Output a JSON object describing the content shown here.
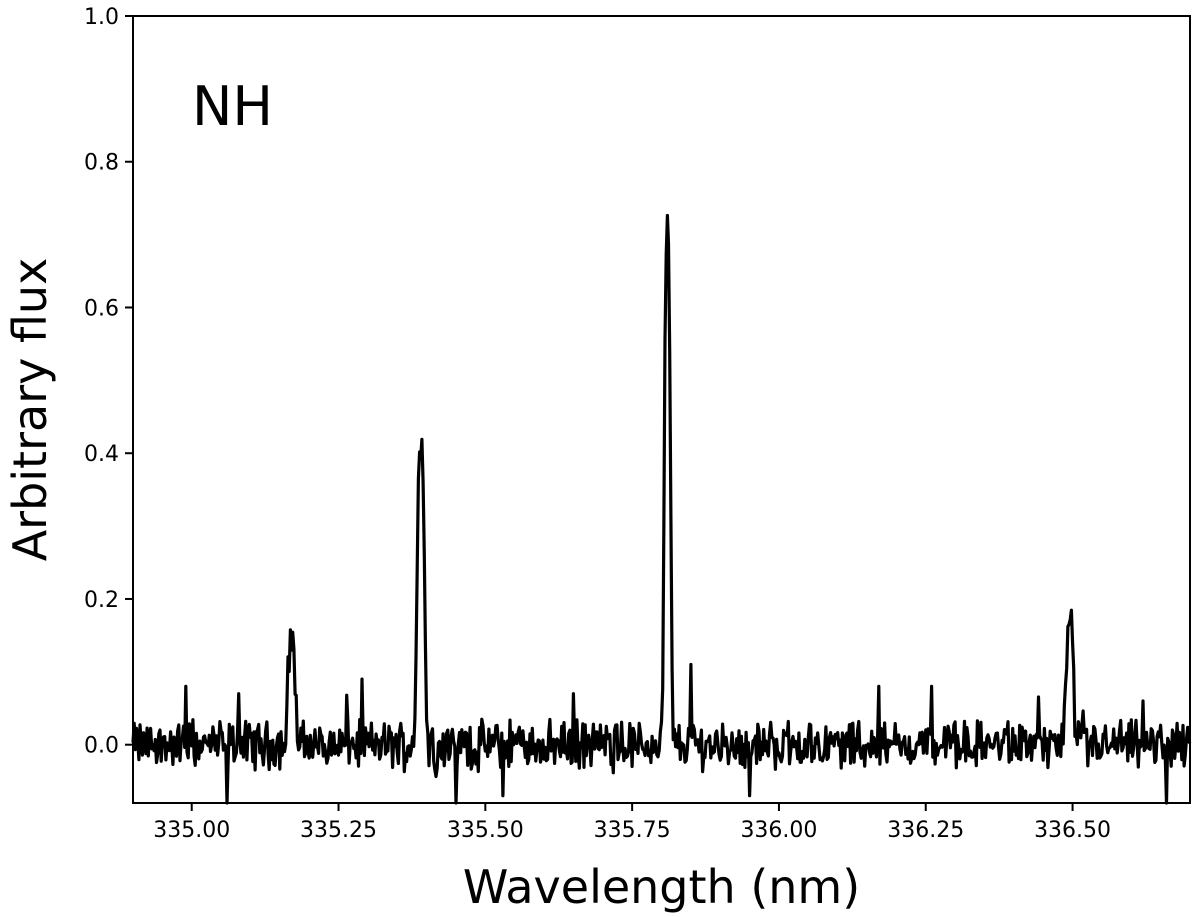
{
  "chart_data": {
    "type": "line",
    "xlabel": "Wavelength (nm)",
    "ylabel": "Arbitrary flux",
    "annotation": "NH",
    "xlim": [
      334.9,
      336.7
    ],
    "ylim": [
      -0.08,
      1.0
    ],
    "xticks": [
      335.0,
      335.25,
      335.5,
      335.75,
      336.0,
      336.25,
      336.5
    ],
    "xtick_labels": [
      "335.00",
      "335.25",
      "335.50",
      "335.75",
      "336.00",
      "336.25",
      "336.50"
    ],
    "yticks": [
      0.0,
      0.2,
      0.4,
      0.6,
      0.8,
      1.0
    ],
    "ytick_labels": [
      "0.0",
      "0.2",
      "0.4",
      "0.6",
      "0.8",
      "1.0"
    ],
    "grid": false,
    "line_color": "#000000",
    "noise_level": 0.025,
    "peaks": [
      {
        "center": 335.17,
        "height": 0.15,
        "width": 0.006
      },
      {
        "center": 335.39,
        "height": 0.42,
        "width": 0.006
      },
      {
        "center": 335.81,
        "height": 0.7,
        "width": 0.005
      },
      {
        "center": 336.495,
        "height": 0.16,
        "width": 0.006
      }
    ],
    "spikes": [
      {
        "x": 334.99,
        "y": 0.08
      },
      {
        "x": 335.06,
        "y": -0.08
      },
      {
        "x": 335.08,
        "y": 0.07
      },
      {
        "x": 335.29,
        "y": 0.09
      },
      {
        "x": 335.45,
        "y": -0.08
      },
      {
        "x": 335.53,
        "y": -0.07
      },
      {
        "x": 335.65,
        "y": 0.07
      },
      {
        "x": 335.85,
        "y": 0.11
      },
      {
        "x": 335.95,
        "y": -0.07
      },
      {
        "x": 336.17,
        "y": 0.08
      },
      {
        "x": 336.26,
        "y": 0.08
      },
      {
        "x": 336.62,
        "y": 0.06
      },
      {
        "x": 336.66,
        "y": -0.08
      }
    ]
  }
}
